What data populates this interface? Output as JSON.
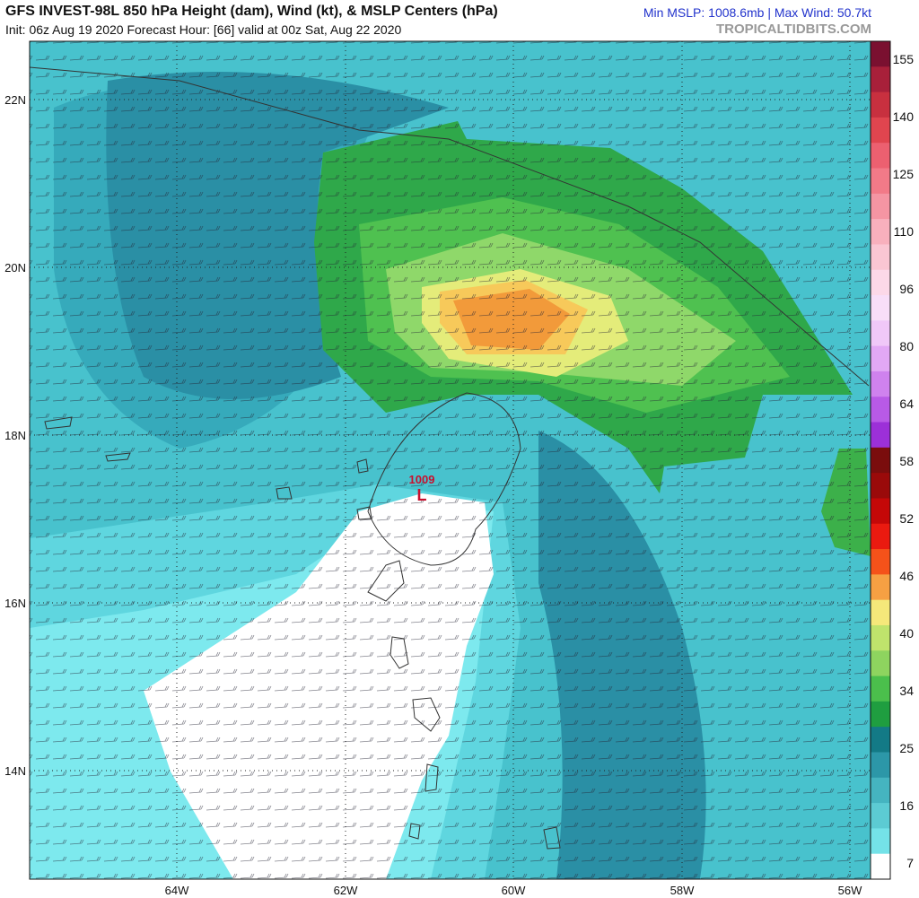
{
  "header": {
    "title": "GFS INVEST-98L 850 hPa Height (dam), Wind (kt), & MSLP Centers (hPa)",
    "subtitle": "Init: 06z Aug 19 2020   Forecast Hour: [66]   valid at 00z Sat, Aug 22 2020",
    "stats": "Min MSLP: 1008.6mb | Max Wind: 50.7kt",
    "site": "TROPICALTIDBITS.COM"
  },
  "map": {
    "lat_labels": [
      "22N",
      "20N",
      "18N",
      "16N",
      "14N"
    ],
    "lon_labels": [
      "64W",
      "62W",
      "60W",
      "58W",
      "56W"
    ],
    "low": {
      "pressure": "1009",
      "symbol": "L"
    }
  },
  "colorbar": {
    "labels": [
      155,
      140,
      125,
      110,
      96,
      80,
      64,
      58,
      52,
      46,
      40,
      34,
      25,
      16,
      7
    ]
  }
}
